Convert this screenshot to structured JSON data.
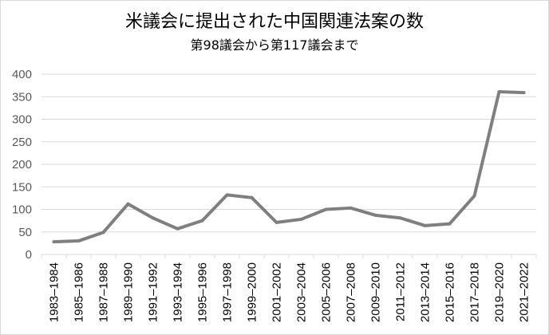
{
  "title": "米議会に提出された中国関連法案の数",
  "subtitle": "第98議会から第117議会まで",
  "colors": {
    "line": "#7f7f7f",
    "grid": "#d9d9d9",
    "axis_text": "#595959",
    "category_text": "#000000"
  },
  "chart_data": {
    "type": "line",
    "title": "米議会に提出された中国関連法案の数",
    "subtitle": "第98議会から第117議会まで",
    "xlabel": "",
    "ylabel": "",
    "ylim": [
      0,
      400
    ],
    "yticks": [
      0,
      50,
      100,
      150,
      200,
      250,
      300,
      350,
      400
    ],
    "grid": "horizontal",
    "legend": "none",
    "categories": [
      "1983–1984",
      "1985–1986",
      "1987–1988",
      "1989–1990",
      "1991–1992",
      "1993–1994",
      "1995–1996",
      "1997–1998",
      "1999–2000",
      "2001–2002",
      "2003–2004",
      "2005–2006",
      "2007–2008",
      "2009–2010",
      "2011–2012",
      "2013–2014",
      "2015–2016",
      "2017–2018",
      "2019–2020",
      "2021–2022"
    ],
    "series": [
      {
        "values": [
          28,
          30,
          49,
          112,
          81,
          57,
          75,
          132,
          126,
          71,
          78,
          100,
          103,
          87,
          81,
          64,
          68,
          130,
          361,
          359
        ]
      }
    ]
  }
}
